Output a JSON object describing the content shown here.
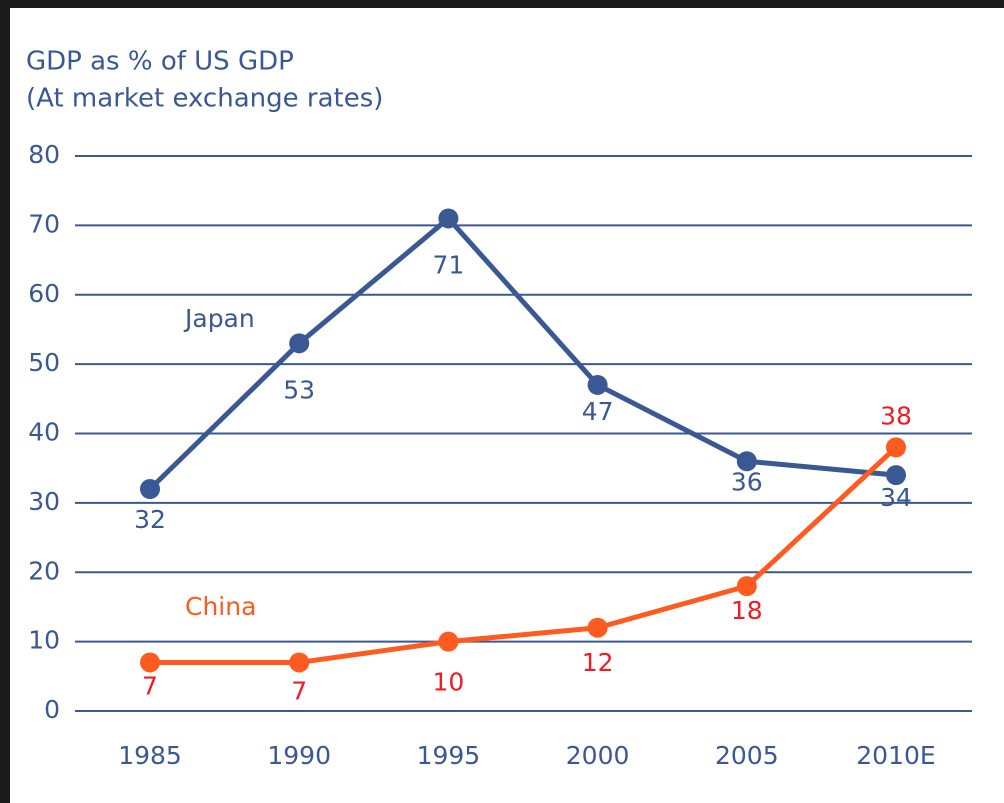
{
  "chart_data": {
    "type": "line",
    "title": "GDP as % of US GDP",
    "subtitle": "(At market exchange rates)",
    "categories": [
      "1985",
      "1990",
      "1995",
      "2000",
      "2005",
      "2010E"
    ],
    "series": [
      {
        "name": "Japan",
        "color": "#3a5894",
        "label_color": "#3a5894",
        "values": [
          32,
          53,
          71,
          47,
          36,
          34
        ]
      },
      {
        "name": "China",
        "color": "#ff5a1f",
        "label_color": "#ff5a1f",
        "value_color": "#ee1c25",
        "values": [
          7,
          7,
          10,
          12,
          18,
          38
        ]
      }
    ],
    "ylim": [
      0,
      80
    ],
    "yticks": [
      0,
      10,
      20,
      30,
      40,
      50,
      60,
      70,
      80
    ],
    "grid": true
  }
}
